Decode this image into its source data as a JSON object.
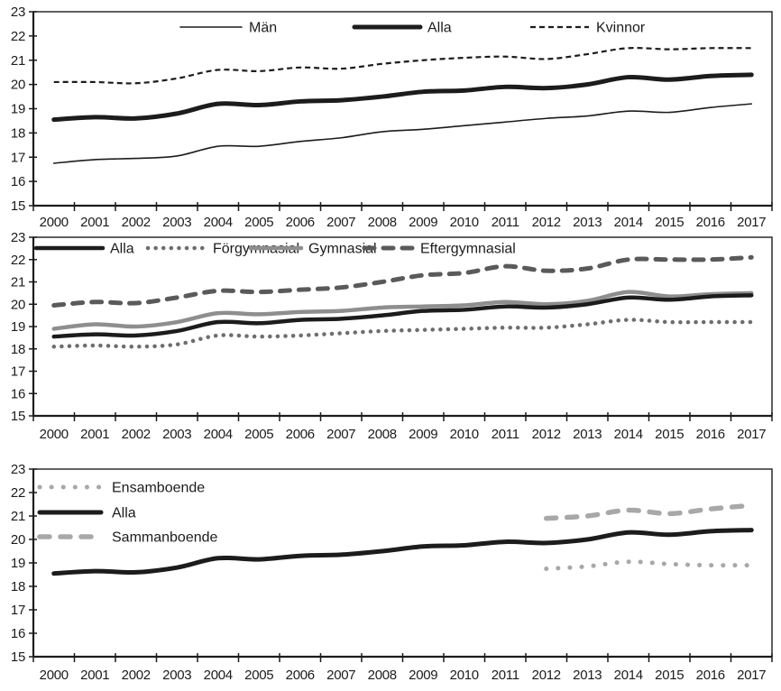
{
  "figure": {
    "background": "#ffffff",
    "axis_color": "#1c1c1c",
    "text_color": "#1c1c1c"
  },
  "chart_data": [
    {
      "type": "line",
      "title": "",
      "x": [
        2000,
        2001,
        2002,
        2003,
        2004,
        2005,
        2006,
        2007,
        2008,
        2009,
        2010,
        2011,
        2012,
        2013,
        2014,
        2015,
        2016,
        2017
      ],
      "ylim": [
        15,
        23
      ],
      "yticks": [
        15,
        16,
        17,
        18,
        19,
        20,
        21,
        22,
        23
      ],
      "grid": false,
      "legend_position": "inside-top-horizontal",
      "series": [
        {
          "name": "Män",
          "color": "#1c1c1c",
          "thickness": 1.6,
          "line_style": "solid",
          "z": 1,
          "values": [
            16.75,
            16.9,
            16.95,
            17.05,
            17.45,
            17.45,
            17.65,
            17.8,
            18.05,
            18.15,
            18.3,
            18.45,
            18.6,
            18.7,
            18.9,
            18.85,
            19.05,
            19.2
          ]
        },
        {
          "name": "Alla",
          "color": "#1c1c1c",
          "thickness": 5,
          "line_style": "solid",
          "z": 2,
          "values": [
            18.55,
            18.65,
            18.6,
            18.8,
            19.2,
            19.15,
            19.3,
            19.35,
            19.5,
            19.7,
            19.75,
            19.9,
            19.85,
            20.0,
            20.3,
            20.2,
            20.35,
            20.4
          ]
        },
        {
          "name": "Kvinnor",
          "color": "#1c1c1c",
          "thickness": 2.2,
          "line_style": "dashed",
          "dash_pattern": "6 4",
          "cap": "butt",
          "z": 3,
          "values": [
            20.1,
            20.1,
            20.05,
            20.25,
            20.6,
            20.55,
            20.7,
            20.65,
            20.85,
            21.0,
            21.1,
            21.15,
            21.05,
            21.25,
            21.5,
            21.45,
            21.5,
            21.5
          ]
        }
      ]
    },
    {
      "type": "line",
      "title": "",
      "x": [
        2000,
        2001,
        2002,
        2003,
        2004,
        2005,
        2006,
        2007,
        2008,
        2009,
        2010,
        2011,
        2012,
        2013,
        2014,
        2015,
        2016,
        2017
      ],
      "ylim": [
        15,
        23
      ],
      "yticks": [
        15,
        16,
        17,
        18,
        19,
        20,
        21,
        22,
        23
      ],
      "grid": false,
      "legend_position": "inside-top-horizontal",
      "series": [
        {
          "name": "Alla",
          "color": "#1c1c1c",
          "thickness": 4.5,
          "line_style": "solid",
          "z": 4,
          "values": [
            18.55,
            18.65,
            18.6,
            18.8,
            19.2,
            19.15,
            19.3,
            19.35,
            19.5,
            19.7,
            19.75,
            19.9,
            19.85,
            20.0,
            20.3,
            20.2,
            20.35,
            20.4
          ]
        },
        {
          "name": "Förgymnasial",
          "color": "#6e6e6e",
          "thickness": 4.5,
          "line_style": "dotted",
          "dash_pattern": "0.1 8.5",
          "cap": "round",
          "z": 1,
          "values": [
            18.1,
            18.15,
            18.1,
            18.2,
            18.6,
            18.55,
            18.6,
            18.7,
            18.8,
            18.85,
            18.9,
            18.95,
            18.95,
            19.1,
            19.3,
            19.2,
            19.2,
            19.2
          ]
        },
        {
          "name": "Gymnasial",
          "color": "#8e8e8e",
          "thickness": 4.5,
          "line_style": "solid",
          "z": 2,
          "values": [
            18.9,
            19.1,
            19.0,
            19.2,
            19.6,
            19.55,
            19.65,
            19.7,
            19.85,
            19.9,
            19.95,
            20.1,
            20.0,
            20.15,
            20.55,
            20.35,
            20.45,
            20.5
          ]
        },
        {
          "name": "Eftergymnasial",
          "color": "#5a5a5a",
          "thickness": 5,
          "line_style": "dashed",
          "dash_pattern": "11 10",
          "cap": "round",
          "z": 3,
          "values": [
            19.95,
            20.1,
            20.05,
            20.3,
            20.6,
            20.55,
            20.65,
            20.75,
            21.0,
            21.3,
            21.4,
            21.7,
            21.5,
            21.6,
            22.0,
            22.0,
            22.0,
            22.1
          ]
        }
      ]
    },
    {
      "type": "line",
      "title": "",
      "x": [
        2000,
        2001,
        2002,
        2003,
        2004,
        2005,
        2006,
        2007,
        2008,
        2009,
        2010,
        2011,
        2012,
        2013,
        2014,
        2015,
        2016,
        2017
      ],
      "ylim": [
        15,
        23
      ],
      "yticks": [
        15,
        16,
        17,
        18,
        19,
        20,
        21,
        22,
        23
      ],
      "grid": false,
      "legend_position": "inside-top-left-vertical",
      "series": [
        {
          "name": "Ensamboende",
          "color": "#a8a8a8",
          "thickness": 5,
          "line_style": "dotted",
          "dash_pattern": "0.1 13",
          "cap": "round",
          "z": 1,
          "values": [
            null,
            null,
            null,
            null,
            null,
            null,
            null,
            null,
            null,
            null,
            null,
            null,
            18.75,
            18.85,
            19.05,
            18.95,
            18.9,
            18.9
          ]
        },
        {
          "name": "Alla",
          "color": "#1c1c1c",
          "thickness": 5,
          "line_style": "solid",
          "z": 3,
          "values": [
            18.55,
            18.65,
            18.6,
            18.8,
            19.2,
            19.15,
            19.3,
            19.35,
            19.5,
            19.7,
            19.75,
            19.9,
            19.85,
            20.0,
            20.3,
            20.2,
            20.35,
            20.4
          ]
        },
        {
          "name": "Sammanboende",
          "color": "#a8a8a8",
          "thickness": 5.5,
          "line_style": "dashed",
          "dash_pattern": "11 12",
          "cap": "round",
          "z": 2,
          "values": [
            null,
            null,
            null,
            null,
            null,
            null,
            null,
            null,
            null,
            null,
            null,
            null,
            20.9,
            21.0,
            21.25,
            21.1,
            21.3,
            21.45
          ]
        }
      ]
    }
  ]
}
